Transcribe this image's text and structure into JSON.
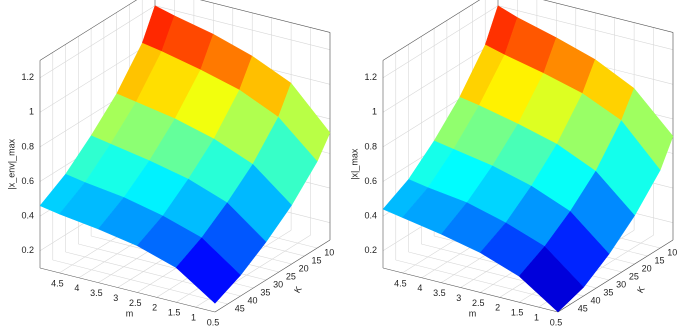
{
  "chart_data": [
    {
      "type": "surface",
      "zlabel": "|x_env|_max",
      "xlabel": "m",
      "ylabel": "K",
      "xlim": [
        0.5,
        5
      ],
      "ylim": [
        5,
        50
      ],
      "zlim": [
        0.1,
        1.3
      ],
      "xticks": [
        4.5,
        4,
        3.5,
        3,
        2.5,
        2,
        1.5,
        1,
        0.5
      ],
      "yticks": [
        10,
        15,
        20,
        25,
        30,
        35,
        40,
        45
      ],
      "zticks": [
        0.2,
        0.4,
        0.6,
        0.8,
        1,
        1.2
      ],
      "x": [
        0.5,
        1.5,
        2.5,
        3.5,
        4.5,
        5
      ],
      "y": [
        5,
        10,
        20,
        30,
        40,
        50
      ],
      "z": [
        [
          0.72,
          0.6,
          0.44,
          0.32,
          0.22,
          0.15
        ],
        [
          0.95,
          0.8,
          0.62,
          0.49,
          0.38,
          0.3
        ],
        [
          1.05,
          0.9,
          0.71,
          0.57,
          0.45,
          0.37
        ],
        [
          1.12,
          0.96,
          0.77,
          0.62,
          0.5,
          0.41
        ],
        [
          1.17,
          1.01,
          0.81,
          0.66,
          0.53,
          0.44
        ],
        [
          1.2,
          1.03,
          0.83,
          0.68,
          0.55,
          0.46
        ]
      ]
    },
    {
      "type": "surface",
      "zlabel": "|x|_max",
      "xlabel": "m",
      "ylabel": "K",
      "xlim": [
        0.5,
        5
      ],
      "ylim": [
        5,
        50
      ],
      "zlim": [
        0.1,
        1.3
      ],
      "xticks": [
        4.5,
        4,
        3.5,
        3,
        2.5,
        2,
        1.5,
        1,
        0.5
      ],
      "yticks": [
        10,
        15,
        20,
        25,
        30,
        35,
        40,
        45
      ],
      "zticks": [
        0.2,
        0.4,
        0.6,
        0.8,
        1,
        1.2
      ],
      "x": [
        0.5,
        1.5,
        2.5,
        3.5,
        4.5,
        5
      ],
      "y": [
        5,
        10,
        20,
        30,
        40,
        50
      ],
      "z": [
        [
          0.7,
          0.55,
          0.38,
          0.25,
          0.15,
          0.1
        ],
        [
          0.92,
          0.78,
          0.58,
          0.44,
          0.33,
          0.25
        ],
        [
          1.03,
          0.88,
          0.68,
          0.53,
          0.41,
          0.33
        ],
        [
          1.1,
          0.94,
          0.74,
          0.59,
          0.47,
          0.38
        ],
        [
          1.16,
          0.99,
          0.79,
          0.63,
          0.5,
          0.42
        ],
        [
          1.2,
          1.02,
          0.81,
          0.65,
          0.52,
          0.44
        ]
      ]
    }
  ]
}
